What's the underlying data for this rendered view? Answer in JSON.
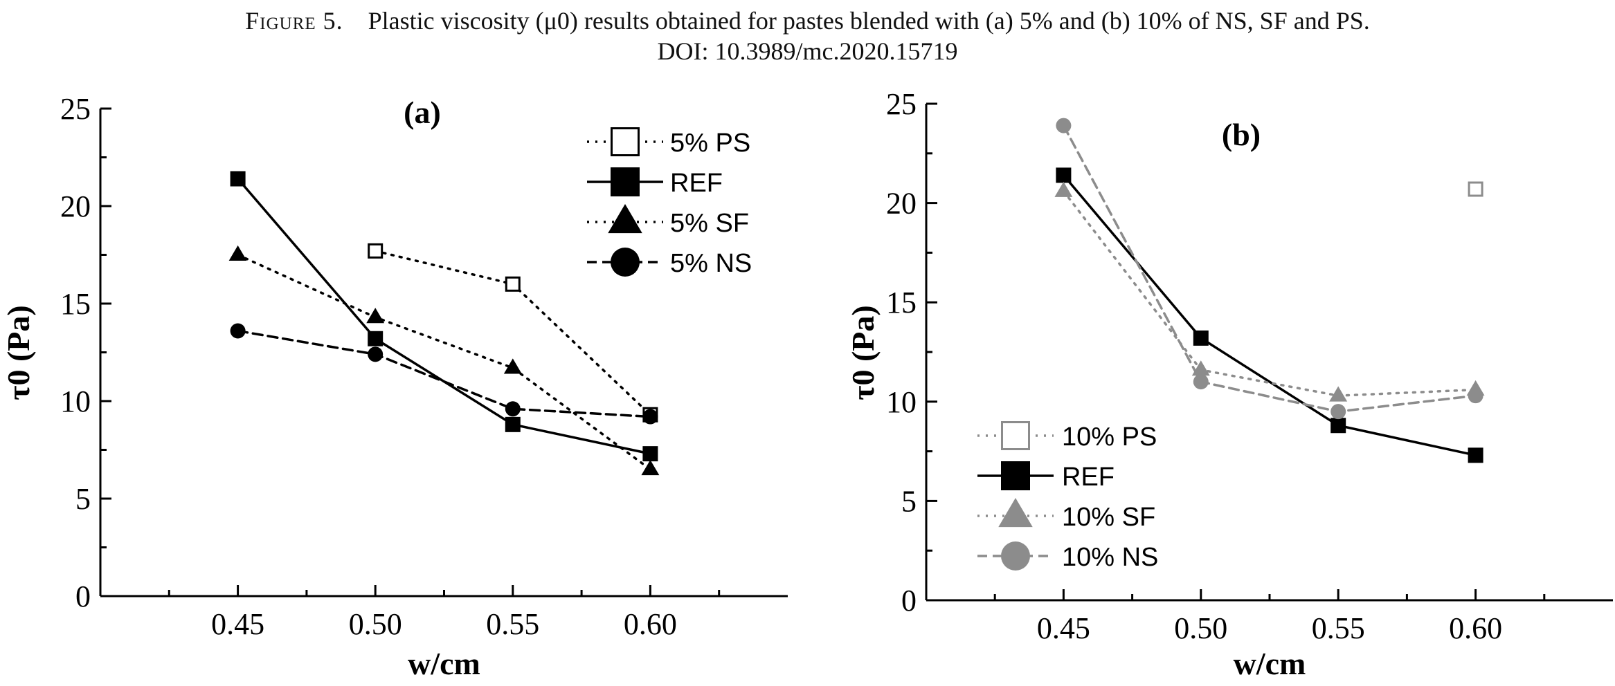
{
  "caption": {
    "label": "Figure 5.",
    "text": "Plastic viscosity (μ0) results obtained for pastes blended with (a) 5% and (b) 10% of NS, SF and PS.",
    "doi": "DOI: 10.3989/mc.2020.15719"
  },
  "chart_data": [
    {
      "type": "line",
      "panel_label": "(a)",
      "xlabel": "w/cm",
      "ylabel": "τ0 (Pa)",
      "xlim": [
        0.4,
        0.65
      ],
      "ylim": [
        0,
        25
      ],
      "x_ticks": [
        "0.45",
        "0.50",
        "0.55",
        "0.60"
      ],
      "y_ticks": [
        "0",
        "5",
        "10",
        "15",
        "20",
        "25"
      ],
      "grid": false,
      "legend": "top-right",
      "series": [
        {
          "name": "5% PS",
          "x": [
            0.5,
            0.55,
            0.6
          ],
          "values": [
            17.7,
            16.0,
            9.3
          ],
          "color": "#000000",
          "marker": "square-open",
          "line": "dotted"
        },
        {
          "name": "REF",
          "x": [
            0.45,
            0.5,
            0.55,
            0.6
          ],
          "values": [
            21.4,
            13.2,
            8.8,
            7.3
          ],
          "color": "#000000",
          "marker": "square",
          "line": "solid"
        },
        {
          "name": "5% SF",
          "x": [
            0.45,
            0.5,
            0.55,
            0.6
          ],
          "values": [
            17.5,
            14.3,
            11.7,
            6.5
          ],
          "color": "#000000",
          "marker": "triangle",
          "line": "dotted"
        },
        {
          "name": "5% NS",
          "x": [
            0.45,
            0.5,
            0.55,
            0.6
          ],
          "values": [
            13.6,
            12.4,
            9.6,
            9.2
          ],
          "color": "#000000",
          "marker": "circle",
          "line": "dashed"
        }
      ]
    },
    {
      "type": "line",
      "panel_label": "(b)",
      "xlabel": "w/cm",
      "ylabel": "τ0 (Pa)",
      "xlim": [
        0.4,
        0.65
      ],
      "ylim": [
        0,
        25
      ],
      "x_ticks": [
        "0.45",
        "0.50",
        "0.55",
        "0.60"
      ],
      "y_ticks": [
        "0",
        "5",
        "10",
        "15",
        "20",
        "25"
      ],
      "grid": false,
      "legend": "bottom-left",
      "series": [
        {
          "name": "10% PS",
          "x": [
            0.6
          ],
          "values": [
            20.7
          ],
          "color": "#8c8c8c",
          "marker": "square-open",
          "line": "dotted"
        },
        {
          "name": "REF",
          "x": [
            0.45,
            0.5,
            0.55,
            0.6
          ],
          "values": [
            21.4,
            13.2,
            8.8,
            7.3
          ],
          "color": "#000000",
          "marker": "square",
          "line": "solid"
        },
        {
          "name": "10% SF",
          "x": [
            0.45,
            0.5,
            0.55,
            0.6
          ],
          "values": [
            20.6,
            11.6,
            10.3,
            10.6
          ],
          "color": "#8c8c8c",
          "marker": "triangle",
          "line": "dotted"
        },
        {
          "name": "10% NS",
          "x": [
            0.45,
            0.5,
            0.55,
            0.6
          ],
          "values": [
            23.9,
            11.0,
            9.5,
            10.3
          ],
          "color": "#8c8c8c",
          "marker": "circle",
          "line": "dashed"
        }
      ]
    }
  ]
}
